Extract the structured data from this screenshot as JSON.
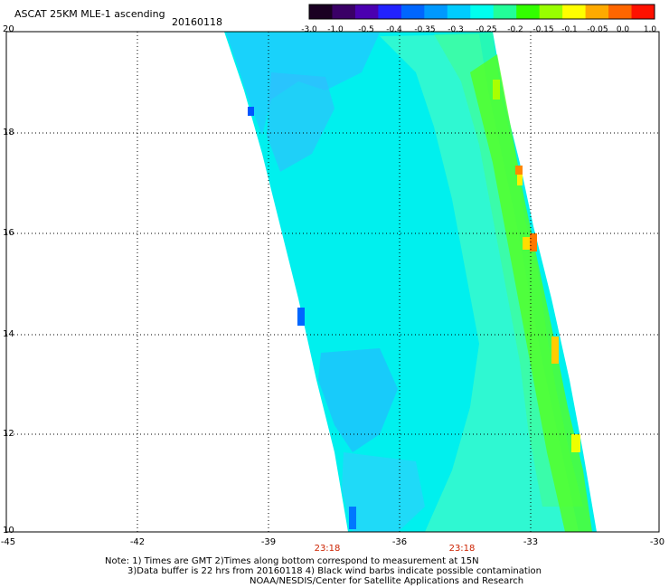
{
  "title": "ASCAT 25KM MLE-1 ascending",
  "date": "20160118",
  "colorbar": {
    "labels": [
      "-3.0",
      "-1.0",
      "-0.5",
      "-0.4",
      "-0.35",
      "-0.3",
      "-0.25",
      "-0.2",
      "-0.15",
      "-0.1",
      "-0.05",
      "0.0",
      "1.0"
    ],
    "colors": [
      "#1a0022",
      "#3a0066",
      "#4b00b0",
      "#2222ff",
      "#0066ff",
      "#0099ff",
      "#00ccff",
      "#00ffee",
      "#22ff99",
      "#33ff00",
      "#99ff00",
      "#ffff00",
      "#ffaa00",
      "#ff6600",
      "#ff1100"
    ]
  },
  "axes": {
    "lon_ticks": [
      "-45",
      "-42",
      "-39",
      "-36",
      "-33",
      "-30"
    ],
    "lat_ticks": [
      "20",
      "18",
      "16",
      "14",
      "12",
      "10"
    ]
  },
  "times": [
    "23:18",
    "23:18"
  ],
  "notes": [
    "Note: 1) Times are GMT 2)Times along bottom correspond to measurement at 15N",
    "3)Data buffer is 22 hrs from 20160118 4) Black wind barbs indicate possible contamination",
    "NOAA/NESDIS/Center for Satellite Applications and Research"
  ]
}
